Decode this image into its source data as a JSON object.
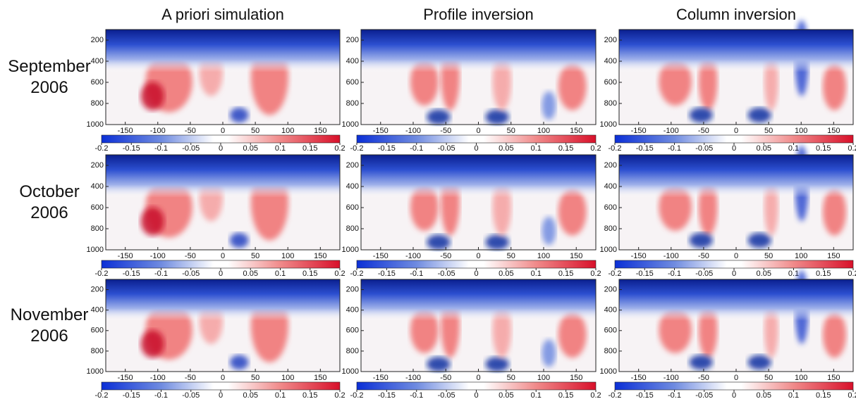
{
  "column_titles": [
    "A priori simulation",
    "Profile inversion",
    "Column inversion"
  ],
  "row_labels": [
    [
      "September",
      "2006"
    ],
    [
      "October",
      "2006"
    ],
    [
      "November",
      "2006"
    ]
  ],
  "x_axis": {
    "lim": [
      -180,
      180
    ],
    "ticks": [
      -150,
      -100,
      -50,
      0,
      50,
      100,
      150
    ]
  },
  "y_axis": {
    "lim": [
      100,
      1000
    ],
    "ticks": [
      200,
      400,
      600,
      800,
      1000
    ]
  },
  "colorbar": {
    "lim": [
      -0.2,
      0.2
    ],
    "ticks": [
      -0.2,
      -0.15,
      -0.1,
      -0.05,
      0,
      0.05,
      0.1,
      0.15,
      0.2
    ]
  }
}
